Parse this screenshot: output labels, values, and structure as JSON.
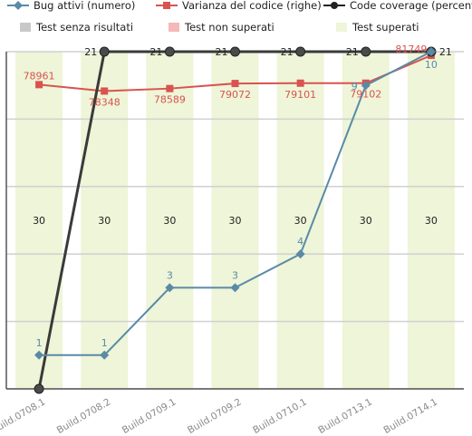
{
  "chart_data": {
    "type": "bar",
    "categories": [
      "Build.0708.1",
      "Build.0708.2",
      "Build.0709.1",
      "Build.0709.2",
      "Build.0710.1",
      "Build.0713.1",
      "Build.0714.1"
    ],
    "legend": {
      "placement": "top",
      "rows": [
        [
          {
            "label": "Bug attivi (numero)",
            "marker": "diamond-line",
            "color": "#5a8aa6"
          },
          {
            "label": "Varianza del codice (righe)",
            "marker": "square-line",
            "color": "#d9534f"
          },
          {
            "label": "Code coverage (percentuale)",
            "marker": "circle-line",
            "color": "#222222"
          }
        ],
        [
          {
            "label": "Test senza risultati",
            "marker": "box",
            "color": "#c8c8c8"
          },
          {
            "label": "Test non superati",
            "marker": "box",
            "color": "#f4b8b8"
          },
          {
            "label": "Test superati",
            "marker": "box",
            "color": "#eef5d8"
          }
        ]
      ]
    },
    "series": [
      {
        "name": "Test superati",
        "kind": "bar",
        "axis": "count",
        "color": "#eef5d8",
        "values": [
          30,
          30,
          30,
          30,
          30,
          30,
          30
        ],
        "labels": [
          "30",
          "30",
          "30",
          "30",
          "30",
          "30",
          "30"
        ]
      },
      {
        "name": "Bug attivi (numero)",
        "kind": "line",
        "axis": "count",
        "color": "#5a8aa6",
        "values": [
          1,
          1,
          3,
          3,
          4,
          9,
          10
        ],
        "labels": [
          "1",
          "1",
          "3",
          "3",
          "4",
          "9",
          "10"
        ]
      },
      {
        "name": "Varianza del codice (righe)",
        "kind": "line",
        "axis": "lines",
        "color": "#d9534f",
        "values": [
          78961,
          78348,
          78589,
          79072,
          79101,
          79102,
          81749
        ],
        "labels": [
          "78961",
          "78348",
          "78589",
          "79072",
          "79101",
          "79102",
          "81749"
        ]
      },
      {
        "name": "Code coverage (percentuale)",
        "kind": "line",
        "axis": "percent",
        "color": "#3a3a3a",
        "values": [
          0,
          21,
          21,
          21,
          21,
          21,
          21
        ],
        "labels": [
          "",
          "21",
          "21",
          "21",
          "21",
          "21",
          "21"
        ]
      }
    ],
    "axes": {
      "count": {
        "min": 0,
        "max": 10
      },
      "lines": {
        "min": 50000,
        "max": 82100
      },
      "percent": {
        "min": 0,
        "max": 21
      }
    },
    "grid": true
  }
}
